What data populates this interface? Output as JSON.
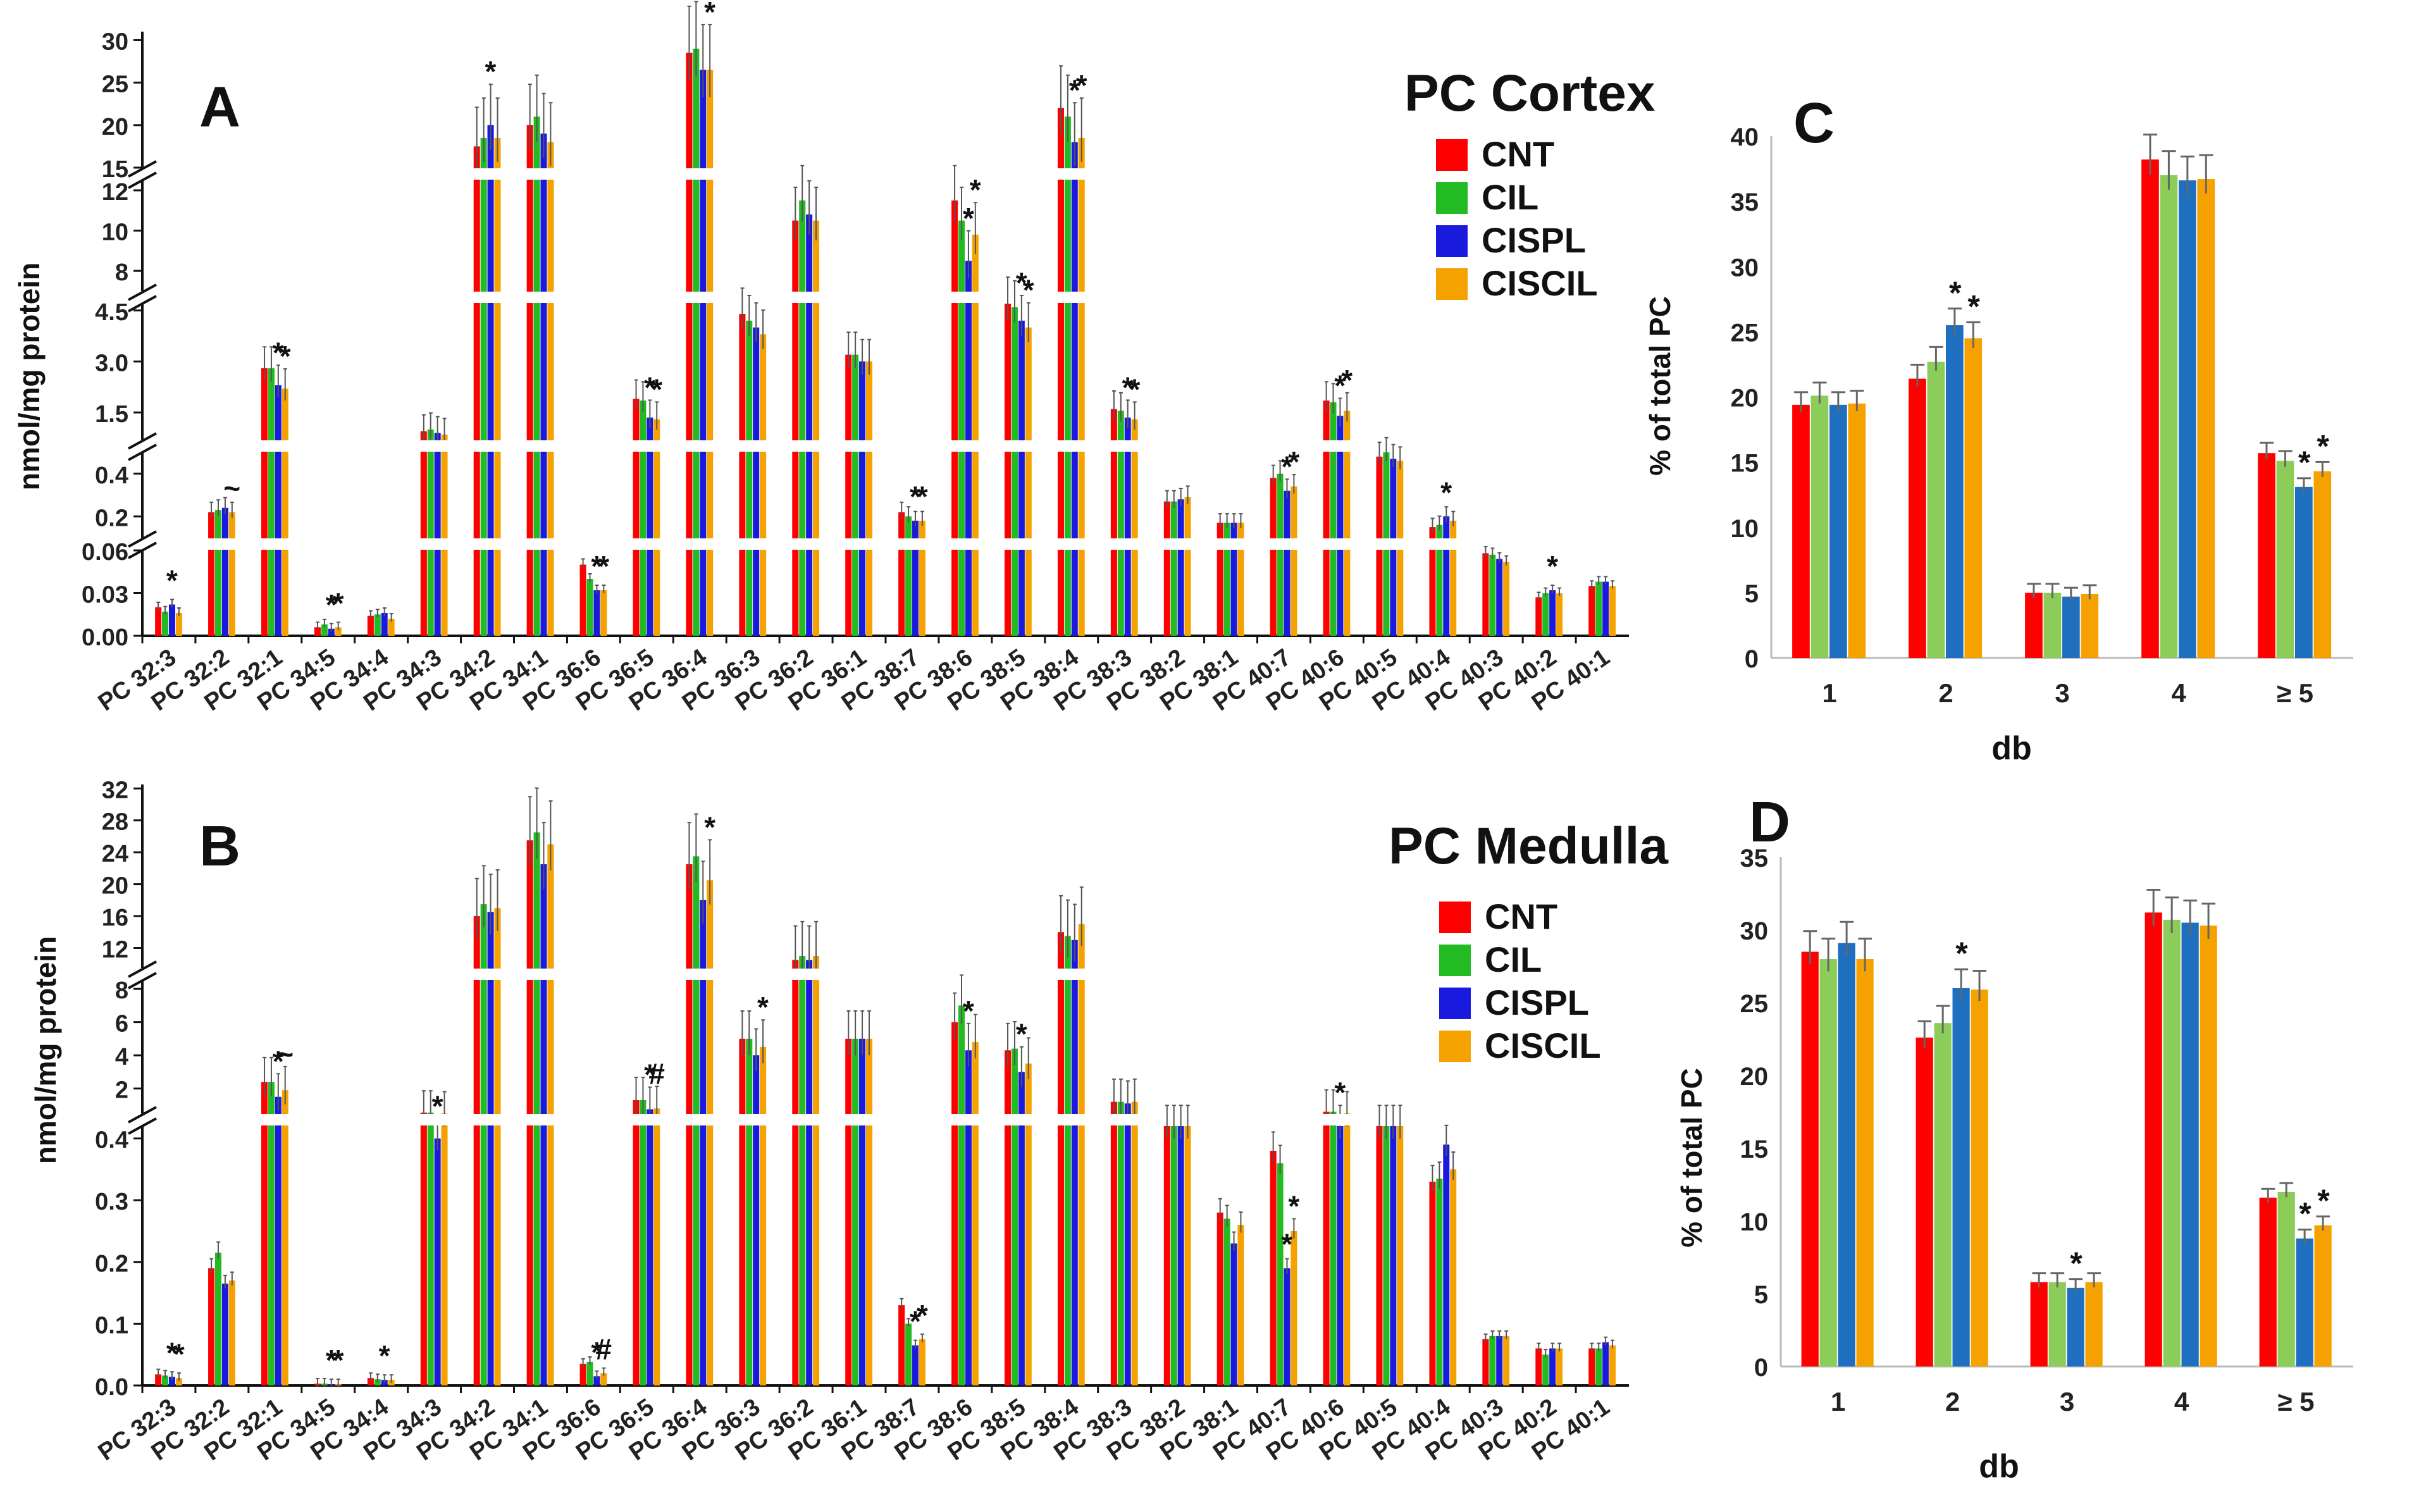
{
  "colors": {
    "CNT": "#ff0000",
    "CIL": "#22bb22",
    "CISPL": "#1a1adf",
    "CISCIL": "#f5a200",
    "C_CIL": "#8ccd5a",
    "C_CISPL": "#1f6fc0"
  },
  "chart_data": [
    {
      "panel": "A",
      "type": "bar",
      "title": "PC Cortex",
      "ylabel": "nmol/mg protein",
      "series_names": [
        "CNT",
        "CIL",
        "CISPL",
        "CISCIL"
      ],
      "categories": [
        "PC 32:3",
        "PC 32:2",
        "PC 32:1",
        "PC 34:5",
        "PC 34:4",
        "PC 34:3",
        "PC 34:2",
        "PC 34:1",
        "PC 36:6",
        "PC 36:5",
        "PC 36:4",
        "PC 36:3",
        "PC 36:2",
        "PC 36:1",
        "PC 38:7",
        "PC 38:6",
        "PC 38:5",
        "PC 38:4",
        "PC 38:3",
        "PC 38:2",
        "PC 38:1",
        "PC 40:7",
        "PC 40:6",
        "PC 40:5",
        "PC 40:4",
        "PC 40:3",
        "PC 40:2",
        "PC 40:1"
      ],
      "values": [
        [
          0.02,
          0.017,
          0.022,
          0.016
        ],
        [
          0.22,
          0.23,
          0.24,
          0.22
        ],
        [
          2.8,
          2.8,
          2.3,
          2.2
        ],
        [
          0.006,
          0.008,
          0.005,
          0.006
        ],
        [
          0.014,
          0.015,
          0.016,
          0.012
        ],
        [
          0.95,
          1.0,
          0.9,
          0.85
        ],
        [
          17.5,
          18.5,
          20,
          18.5
        ],
        [
          20,
          21,
          19,
          18
        ],
        [
          0.05,
          0.04,
          0.032,
          0.032
        ],
        [
          1.9,
          1.85,
          1.35,
          1.3
        ],
        [
          28.5,
          29,
          26.5,
          26.5
        ],
        [
          4.4,
          4.2,
          4.0,
          3.8
        ],
        [
          10.5,
          11.5,
          10.8,
          10.5
        ],
        [
          3.2,
          3.2,
          3.0,
          3.0
        ],
        [
          0.22,
          0.2,
          0.18,
          0.18
        ],
        [
          11.5,
          10.5,
          8.5,
          9.8
        ],
        [
          4.8,
          4.6,
          4.2,
          4.0
        ],
        [
          22,
          21,
          18,
          18.5
        ],
        [
          1.6,
          1.55,
          1.35,
          1.3
        ],
        [
          0.27,
          0.27,
          0.28,
          0.29
        ],
        [
          0.17,
          0.17,
          0.17,
          0.17
        ],
        [
          0.38,
          0.4,
          0.32,
          0.34
        ],
        [
          1.85,
          1.8,
          1.4,
          1.55
        ],
        [
          0.48,
          0.5,
          0.47,
          0.46
        ],
        [
          0.15,
          0.16,
          0.2,
          0.18
        ],
        [
          0.058,
          0.057,
          0.054,
          0.052
        ],
        [
          0.027,
          0.03,
          0.032,
          0.03
        ],
        [
          0.035,
          0.038,
          0.038,
          0.035
        ]
      ],
      "sig": [
        [
          2,
          "*"
        ],
        [
          null,
          null
        ],
        [
          2,
          "*"
        ],
        [
          2,
          "*"
        ],
        [
          null,
          null
        ],
        [
          null,
          null
        ],
        [
          null,
          null
        ],
        [
          null,
          null
        ],
        [
          2,
          "*"
        ],
        [
          2,
          "*"
        ],
        [
          2,
          "*"
        ],
        [
          2,
          "*"
        ],
        [
          null,
          null
        ],
        [
          null,
          null
        ],
        [
          2,
          "*"
        ],
        [
          2,
          "*"
        ],
        [
          null,
          null
        ],
        [
          null,
          null
        ],
        [
          2,
          "*"
        ],
        [
          2,
          "*"
        ],
        [
          null,
          null
        ],
        [
          null,
          null
        ],
        [
          null,
          null
        ],
        [
          null,
          null
        ],
        [
          null,
          null
        ],
        [
          null,
          null
        ],
        [
          null,
          null
        ],
        [
          null,
          null
        ]
      ],
      "sig_labels": {
        "0": [
          [
            2,
            "*"
          ]
        ],
        "1": [
          [
            3,
            "~"
          ]
        ],
        "2": [
          [
            2,
            "*"
          ],
          [
            3,
            "*"
          ]
        ],
        "3": [
          [
            2,
            "*"
          ],
          [
            3,
            "*"
          ]
        ],
        "6": [
          [
            2,
            "*"
          ]
        ],
        "8": [
          [
            2,
            "*"
          ],
          [
            3,
            "*"
          ]
        ],
        "9": [
          [
            2,
            "*"
          ],
          [
            3,
            "*"
          ]
        ],
        "10": [
          [
            1,
            "*"
          ],
          [
            3,
            "*"
          ]
        ],
        "14": [
          [
            2,
            "*"
          ],
          [
            3,
            "*"
          ]
        ],
        "15": [
          [
            2,
            "*"
          ],
          [
            3,
            "*"
          ]
        ],
        "16": [
          [
            2,
            "*"
          ],
          [
            3,
            "*"
          ]
        ],
        "17": [
          [
            2,
            "*"
          ],
          [
            3,
            "*"
          ]
        ],
        "18": [
          [
            2,
            "*"
          ],
          [
            3,
            "*"
          ]
        ],
        "21": [
          [
            2,
            "*"
          ],
          [
            3,
            "*"
          ]
        ],
        "22": [
          [
            2,
            "*"
          ],
          [
            3,
            "*"
          ]
        ],
        "24": [
          [
            2,
            "*"
          ]
        ],
        "26": [
          [
            2,
            "*"
          ]
        ]
      },
      "y_segments": [
        {
          "range": [
            0,
            0.06
          ],
          "ticks": [
            0.0,
            0.03,
            0.06
          ],
          "labels": [
            "0.00",
            "0.03",
            "0.06"
          ]
        },
        {
          "range": [
            0.1,
            0.5
          ],
          "ticks": [
            0.2,
            0.4
          ],
          "labels": [
            "0.2",
            "0.4"
          ]
        },
        {
          "range": [
            0.7,
            4.7
          ],
          "ticks": [
            1.5,
            3.0,
            4.5
          ],
          "labels": [
            "1.5",
            "3.0",
            "4.5"
          ]
        },
        {
          "range": [
            7,
            12.5
          ],
          "ticks": [
            8,
            10,
            12
          ],
          "labels": [
            "8",
            "10",
            "12"
          ]
        },
        {
          "range": [
            15,
            31
          ],
          "ticks": [
            15,
            20,
            25,
            30
          ],
          "labels": [
            "15",
            "20",
            "25",
            "30"
          ]
        }
      ]
    },
    {
      "panel": "B",
      "type": "bar",
      "title": "PC Medulla",
      "ylabel": "nmol/mg protein",
      "series_names": [
        "CNT",
        "CIL",
        "CISPL",
        "CISCIL"
      ],
      "categories": [
        "PC 32:3",
        "PC 32:2",
        "PC 32:1",
        "PC 34:5",
        "PC 34:4",
        "PC 34:3",
        "PC 34:2",
        "PC 34:1",
        "PC 36:6",
        "PC 36:5",
        "PC 36:4",
        "PC 36:3",
        "PC 36:2",
        "PC 36:1",
        "PC 38:7",
        "PC 38:6",
        "PC 38:5",
        "PC 38:4",
        "PC 38:3",
        "PC 38:2",
        "PC 38:1",
        "PC 40:7",
        "PC 40:6",
        "PC 40:5",
        "PC 40:4",
        "PC 40:3",
        "PC 40:2",
        "PC 40:1"
      ],
      "values": [
        [
          0.018,
          0.016,
          0.014,
          0.012
        ],
        [
          0.19,
          0.215,
          0.165,
          0.17
        ],
        [
          2.4,
          2.4,
          1.5,
          1.9
        ],
        [
          0.003,
          0.003,
          0.002,
          0.002
        ],
        [
          0.012,
          0.01,
          0.009,
          0.009
        ],
        [
          0.55,
          0.55,
          0.4,
          0.5
        ],
        [
          16,
          17.5,
          16.5,
          17
        ],
        [
          25.5,
          26.5,
          22.5,
          25
        ],
        [
          0.035,
          0.038,
          0.015,
          0.02
        ],
        [
          1.3,
          1.3,
          0.75,
          0.8
        ],
        [
          22.5,
          23.5,
          18,
          20.5
        ],
        [
          5,
          5,
          4,
          4.5
        ],
        [
          10.5,
          11,
          10.5,
          11
        ],
        [
          5,
          5,
          5,
          5
        ],
        [
          0.13,
          0.1,
          0.065,
          0.075
        ],
        [
          6,
          7,
          4.3,
          4.8
        ],
        [
          4.3,
          4.4,
          3,
          3.5
        ],
        [
          14,
          13.5,
          13,
          15
        ],
        [
          1.2,
          1.2,
          1.1,
          1.2
        ],
        [
          0.42,
          0.42,
          0.42,
          0.43
        ],
        [
          0.28,
          0.27,
          0.23,
          0.26
        ],
        [
          0.38,
          0.36,
          0.19,
          0.25
        ],
        [
          0.6,
          0.6,
          0.45,
          0.5
        ],
        [
          0.48,
          0.48,
          0.47,
          0.47
        ],
        [
          0.33,
          0.335,
          0.39,
          0.35
        ],
        [
          0.075,
          0.08,
          0.08,
          0.08
        ],
        [
          0.06,
          0.05,
          0.06,
          0.06
        ],
        [
          0.06,
          0.06,
          0.07,
          0.065
        ]
      ],
      "sig_labels": {
        "0": [
          [
            2,
            "*"
          ],
          [
            3,
            "*"
          ]
        ],
        "2": [
          [
            2,
            "*"
          ],
          [
            3,
            "~"
          ]
        ],
        "3": [
          [
            2,
            "*"
          ],
          [
            3,
            "*"
          ]
        ],
        "4": [
          [
            2,
            "*"
          ]
        ],
        "5": [
          [
            2,
            "*"
          ]
        ],
        "8": [
          [
            2,
            "*"
          ],
          [
            3,
            "#"
          ]
        ],
        "9": [
          [
            2,
            "*"
          ],
          [
            3,
            "#"
          ]
        ],
        "10": [
          [
            3,
            "*"
          ]
        ],
        "11": [
          [
            3,
            "*"
          ]
        ],
        "14": [
          [
            2,
            "*"
          ],
          [
            3,
            "*"
          ]
        ],
        "15": [
          [
            2,
            "*"
          ]
        ],
        "16": [
          [
            2,
            "*"
          ]
        ],
        "21": [
          [
            2,
            "*"
          ],
          [
            3,
            "*"
          ]
        ],
        "22": [
          [
            2,
            "*"
          ]
        ]
      },
      "y_segments": [
        {
          "range": [
            0,
            0.42
          ],
          "ticks": [
            0.0,
            0.1,
            0.2,
            0.3,
            0.4
          ],
          "labels": [
            "0.0",
            "0.1",
            "0.2",
            "0.3",
            "0.4"
          ]
        },
        {
          "range": [
            0.5,
            8.5
          ],
          "ticks": [
            2,
            4,
            6,
            8
          ],
          "labels": [
            "2",
            "4",
            "6",
            "8"
          ]
        },
        {
          "range": [
            9.5,
            32.5
          ],
          "ticks": [
            12,
            16,
            20,
            24,
            28,
            32
          ],
          "labels": [
            "12",
            "16",
            "20",
            "24",
            "28",
            "32"
          ]
        }
      ]
    },
    {
      "panel": "C",
      "type": "bar",
      "xlabel": "db",
      "ylabel": "% of total PC",
      "categories": [
        "1",
        "2",
        "3",
        "4",
        "≥ 5"
      ],
      "series": [
        {
          "values": [
            19.4,
            21.4,
            5.0,
            38.2,
            15.7
          ]
        },
        {
          "values": [
            20.1,
            22.7,
            5.0,
            37.0,
            15.1
          ]
        },
        {
          "values": [
            19.4,
            25.5,
            4.7,
            36.6,
            13.1
          ]
        },
        {
          "values": [
            19.5,
            24.5,
            4.9,
            36.7,
            14.3
          ]
        }
      ],
      "ylim": [
        0,
        40
      ],
      "yticks": [
        0,
        5,
        10,
        15,
        20,
        25,
        30,
        35,
        40
      ],
      "sig": [
        [
          1,
          2,
          "*"
        ],
        [
          1,
          3,
          "*"
        ],
        [
          4,
          2,
          "*"
        ],
        [
          4,
          3,
          "*"
        ]
      ]
    },
    {
      "panel": "D",
      "type": "bar",
      "xlabel": "db",
      "ylabel": "% of total PC",
      "categories": [
        "1",
        "2",
        "3",
        "4",
        "≥ 5"
      ],
      "series": [
        {
          "values": [
            28.5,
            22.6,
            5.8,
            31.2,
            11.6
          ]
        },
        {
          "values": [
            28.0,
            23.6,
            5.8,
            30.7,
            12.0
          ]
        },
        {
          "values": [
            29.1,
            26.0,
            5.4,
            30.5,
            8.8
          ]
        },
        {
          "values": [
            28.0,
            25.9,
            5.8,
            30.3,
            9.7
          ]
        }
      ],
      "ylim": [
        0,
        35
      ],
      "yticks": [
        0,
        5,
        10,
        15,
        20,
        25,
        30,
        35
      ],
      "sig": [
        [
          1,
          2,
          "*"
        ],
        [
          2,
          2,
          "*"
        ],
        [
          4,
          2,
          "*"
        ],
        [
          4,
          3,
          "*"
        ]
      ]
    }
  ],
  "legend": {
    "A_title": "PC Cortex",
    "B_title": "PC Medulla",
    "items": [
      "CNT",
      "CIL",
      "CISPL",
      "CISCIL"
    ]
  },
  "panels": {
    "A": "A",
    "B": "B",
    "C": "C",
    "D": "D"
  }
}
